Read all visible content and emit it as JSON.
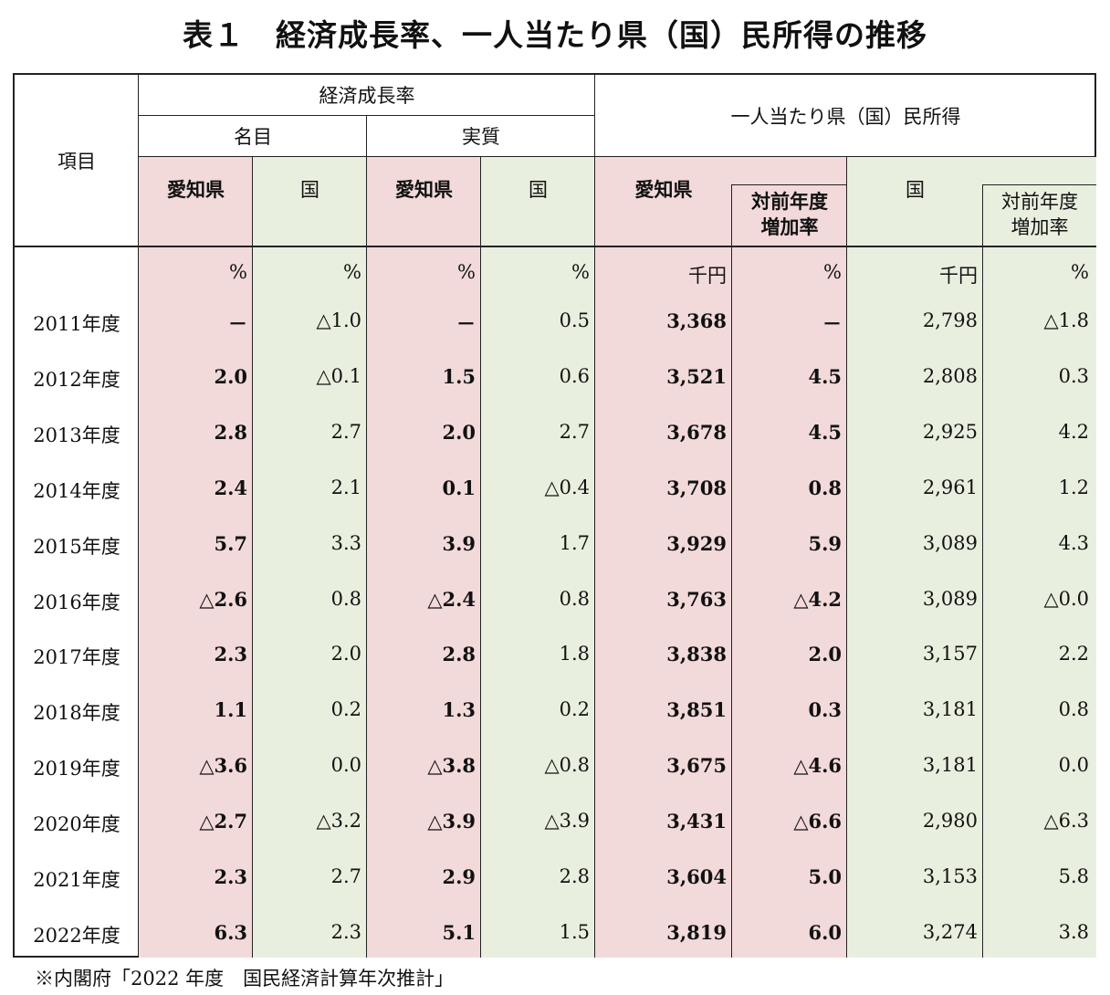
{
  "title": "表１　経済成長率、一人当たり県（国）民所得の推移",
  "headers": {
    "item": "項目",
    "growth": "経済成長率",
    "nominal": "名目",
    "real": "実質",
    "income": "一人当たり県（国）民所得",
    "aichi": "愛知県",
    "country": "国",
    "yoy_line1": "対前年度",
    "yoy_line2": "増加率"
  },
  "units": {
    "percent": "%",
    "thousand_yen": "千円"
  },
  "rows": [
    {
      "year": "2011年度",
      "nominal_aichi": "－",
      "nominal_country": "△1.0",
      "real_aichi": "－",
      "real_country": "0.5",
      "income_aichi": "3,368",
      "income_aichi_yoy": "－",
      "income_country": "2,798",
      "income_country_yoy": "△1.8"
    },
    {
      "year": "2012年度",
      "nominal_aichi": "2.0",
      "nominal_country": "△0.1",
      "real_aichi": "1.5",
      "real_country": "0.6",
      "income_aichi": "3,521",
      "income_aichi_yoy": "4.5",
      "income_country": "2,808",
      "income_country_yoy": "0.3"
    },
    {
      "year": "2013年度",
      "nominal_aichi": "2.8",
      "nominal_country": "2.7",
      "real_aichi": "2.0",
      "real_country": "2.7",
      "income_aichi": "3,678",
      "income_aichi_yoy": "4.5",
      "income_country": "2,925",
      "income_country_yoy": "4.2"
    },
    {
      "year": "2014年度",
      "nominal_aichi": "2.4",
      "nominal_country": "2.1",
      "real_aichi": "0.1",
      "real_country": "△0.4",
      "income_aichi": "3,708",
      "income_aichi_yoy": "0.8",
      "income_country": "2,961",
      "income_country_yoy": "1.2"
    },
    {
      "year": "2015年度",
      "nominal_aichi": "5.7",
      "nominal_country": "3.3",
      "real_aichi": "3.9",
      "real_country": "1.7",
      "income_aichi": "3,929",
      "income_aichi_yoy": "5.9",
      "income_country": "3,089",
      "income_country_yoy": "4.3"
    },
    {
      "year": "2016年度",
      "nominal_aichi": "△2.6",
      "nominal_country": "0.8",
      "real_aichi": "△2.4",
      "real_country": "0.8",
      "income_aichi": "3,763",
      "income_aichi_yoy": "△4.2",
      "income_country": "3,089",
      "income_country_yoy": "△0.0"
    },
    {
      "year": "2017年度",
      "nominal_aichi": "2.3",
      "nominal_country": "2.0",
      "real_aichi": "2.8",
      "real_country": "1.8",
      "income_aichi": "3,838",
      "income_aichi_yoy": "2.0",
      "income_country": "3,157",
      "income_country_yoy": "2.2"
    },
    {
      "year": "2018年度",
      "nominal_aichi": "1.1",
      "nominal_country": "0.2",
      "real_aichi": "1.3",
      "real_country": "0.2",
      "income_aichi": "3,851",
      "income_aichi_yoy": "0.3",
      "income_country": "3,181",
      "income_country_yoy": "0.8"
    },
    {
      "year": "2019年度",
      "nominal_aichi": "△3.6",
      "nominal_country": "0.0",
      "real_aichi": "△3.8",
      "real_country": "△0.8",
      "income_aichi": "3,675",
      "income_aichi_yoy": "△4.6",
      "income_country": "3,181",
      "income_country_yoy": "0.0"
    },
    {
      "year": "2020年度",
      "nominal_aichi": "△2.7",
      "nominal_country": "△3.2",
      "real_aichi": "△3.9",
      "real_country": "△3.9",
      "income_aichi": "3,431",
      "income_aichi_yoy": "△6.6",
      "income_country": "2,980",
      "income_country_yoy": "△6.3"
    },
    {
      "year": "2021年度",
      "nominal_aichi": "2.3",
      "nominal_country": "2.7",
      "real_aichi": "2.9",
      "real_country": "2.8",
      "income_aichi": "3,604",
      "income_aichi_yoy": "5.0",
      "income_country": "3,153",
      "income_country_yoy": "5.8"
    },
    {
      "year": "2022年度",
      "nominal_aichi": "6.3",
      "nominal_country": "2.3",
      "real_aichi": "5.1",
      "real_country": "1.5",
      "income_aichi": "3,819",
      "income_aichi_yoy": "6.0",
      "income_country": "3,274",
      "income_country_yoy": "3.8"
    }
  ],
  "note": "※内閣府「2022 年度　国民経済計算年次推計」",
  "colors": {
    "aichi_bg": "#f2d9da",
    "country_bg": "#e9efdf",
    "border": "#222222"
  }
}
